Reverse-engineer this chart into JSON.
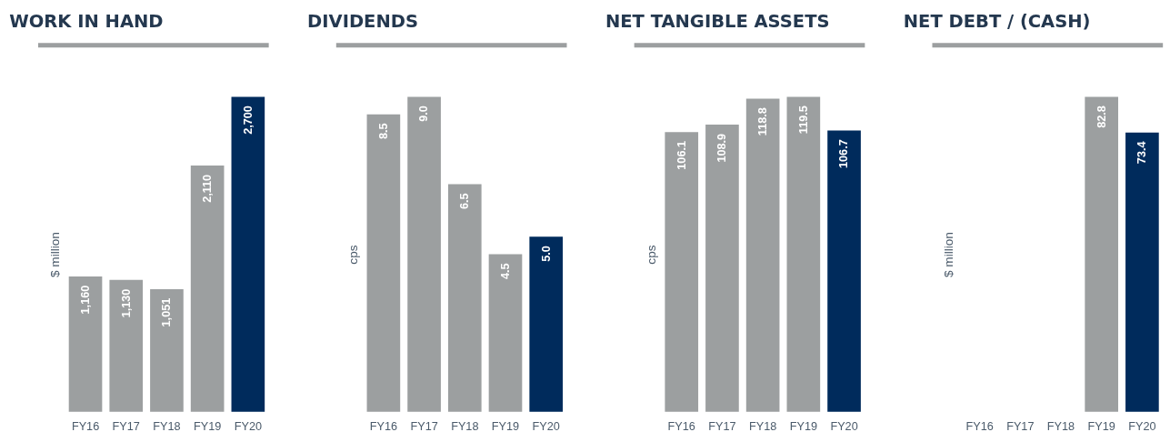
{
  "chart_data": [
    {
      "type": "bar",
      "title": "WORK IN HAND",
      "ylabel": "$ million",
      "categories": [
        "FY16",
        "FY17",
        "FY18",
        "FY19",
        "FY20"
      ],
      "values": [
        1160,
        1130,
        1051,
        2110,
        2700
      ],
      "value_labels": [
        "1,160",
        "1,130",
        "1,051",
        "2,110",
        "2,700"
      ],
      "colors": [
        "#9c9fa0",
        "#9c9fa0",
        "#9c9fa0",
        "#9c9fa0",
        "#002b5c"
      ],
      "tick_labels": "x",
      "grid": false
    },
    {
      "type": "bar",
      "title": "DIVIDENDS",
      "ylabel": "cps",
      "categories": [
        "FY16",
        "FY17",
        "FY18",
        "FY19",
        "FY20"
      ],
      "values": [
        8.5,
        9.0,
        6.5,
        4.5,
        5.0
      ],
      "value_labels": [
        "8.5",
        "9.0",
        "6.5",
        "4.5",
        "5.0"
      ],
      "colors": [
        "#9c9fa0",
        "#9c9fa0",
        "#9c9fa0",
        "#9c9fa0",
        "#002b5c"
      ],
      "tick_labels": "x",
      "grid": false
    },
    {
      "type": "bar",
      "title": "NET TANGIBLE ASSETS",
      "ylabel": "cps",
      "categories": [
        "FY16",
        "FY17",
        "FY18",
        "FY19",
        "FY20"
      ],
      "values": [
        106.1,
        108.9,
        118.8,
        119.5,
        106.7
      ],
      "value_labels": [
        "106.1",
        "108.9",
        "118.8",
        "119.5",
        "106.7"
      ],
      "colors": [
        "#9c9fa0",
        "#9c9fa0",
        "#9c9fa0",
        "#9c9fa0",
        "#002b5c"
      ],
      "tick_labels": "x",
      "grid": false
    },
    {
      "type": "bar",
      "title": "NET DEBT / (CASH)",
      "ylabel": "$ million",
      "categories": [
        "FY16",
        "FY17",
        "FY18",
        "FY19",
        "FY20"
      ],
      "values": [
        null,
        null,
        null,
        82.8,
        73.4
      ],
      "value_labels": [
        null,
        null,
        null,
        "82.8",
        "73.4"
      ],
      "colors": [
        "#9c9fa0",
        "#9c9fa0",
        "#9c9fa0",
        "#9c9fa0",
        "#002b5c"
      ],
      "tick_labels": "x",
      "grid": false
    }
  ]
}
